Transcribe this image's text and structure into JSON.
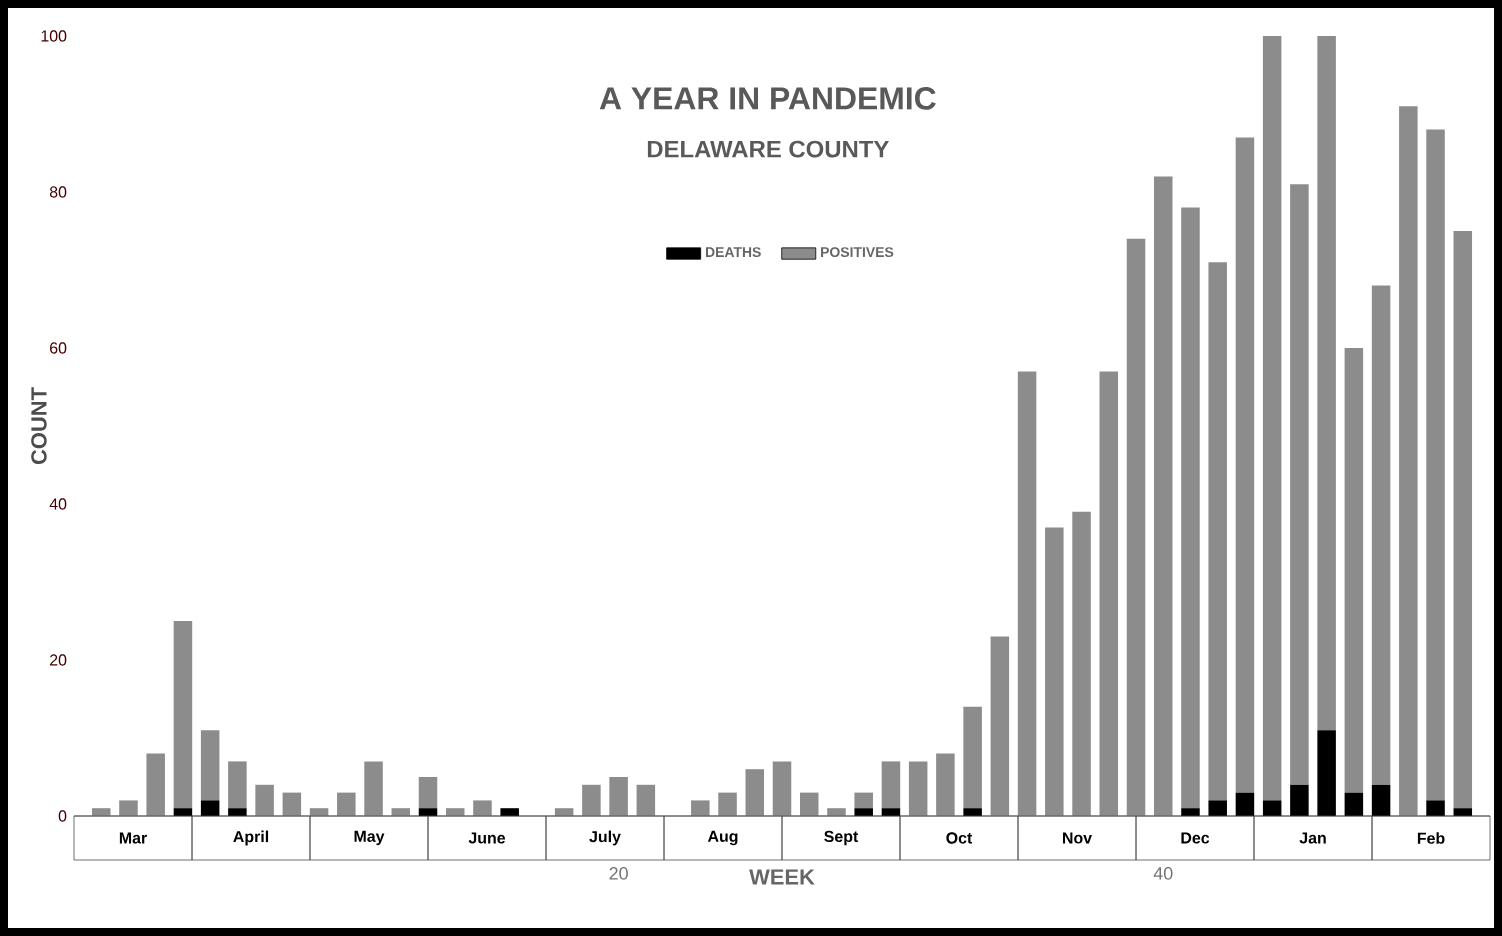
{
  "chart_data": {
    "type": "bar",
    "stacked": true,
    "title": "A YEAR IN PANDEMIC",
    "subtitle": "DELAWARE COUNTY",
    "xlabel": "WEEK",
    "ylabel": "COUNT",
    "x": [
      1,
      2,
      3,
      4,
      5,
      6,
      7,
      8,
      9,
      10,
      11,
      12,
      13,
      14,
      15,
      16,
      17,
      18,
      19,
      20,
      21,
      22,
      23,
      24,
      25,
      26,
      27,
      28,
      29,
      30,
      31,
      32,
      33,
      34,
      35,
      36,
      37,
      38,
      39,
      40,
      41,
      42,
      43,
      44,
      45,
      46,
      47,
      48,
      49,
      50,
      51
    ],
    "series": [
      {
        "name": "DEATHS",
        "color": "#000000",
        "values": [
          0,
          0,
          0,
          1,
          2,
          1,
          0,
          0,
          0,
          0,
          0,
          0,
          1,
          0,
          0,
          1,
          0,
          0,
          0,
          0,
          0,
          0,
          0,
          0,
          0,
          0,
          0,
          0,
          1,
          1,
          0,
          0,
          1,
          0,
          0,
          0,
          0,
          0,
          0,
          0,
          1,
          2,
          3,
          2,
          4,
          11,
          3,
          4,
          0,
          2,
          1
        ]
      },
      {
        "name": "POSITIVES",
        "color": "#8c8c8c",
        "values": [
          1,
          2,
          8,
          24,
          9,
          6,
          4,
          3,
          1,
          3,
          7,
          1,
          4,
          1,
          2,
          0,
          0,
          1,
          4,
          5,
          4,
          0,
          2,
          3,
          6,
          7,
          3,
          1,
          2,
          6,
          7,
          8,
          13,
          23,
          57,
          37,
          39,
          57,
          74,
          82,
          77,
          69,
          84,
          98,
          77,
          89,
          57,
          64,
          91,
          86,
          74
        ]
      }
    ],
    "xlim": [
      0,
      52
    ],
    "xticks": [
      20,
      40
    ],
    "ylim": [
      0,
      100
    ],
    "yticks": [
      0,
      20,
      40,
      60,
      80,
      100
    ],
    "legend": "top",
    "annotations": [
      "Mar",
      "April",
      "May",
      "June",
      "July",
      "Aug",
      "Sept",
      "Oct",
      "Nov",
      "Dec",
      "Jan",
      "Feb"
    ]
  }
}
